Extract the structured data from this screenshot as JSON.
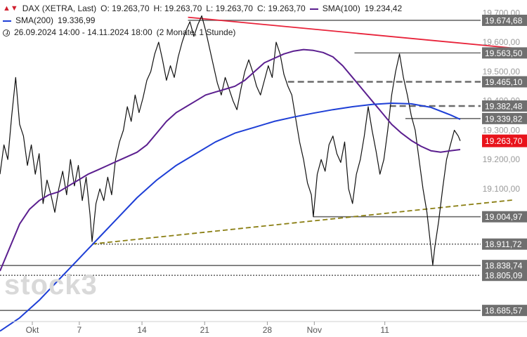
{
  "legend": {
    "symbol": "DAX (XETRA, Last)",
    "open": "O: 19.263,70",
    "high": "H: 19.263,70",
    "low": "L: 19.263,70",
    "close": "C: 19.263,70",
    "sma100_label": "SMA(100)",
    "sma100_value": "19.234,42",
    "sma200_label": "SMA(200)",
    "sma200_value": "19.336,99",
    "range": "26.09.2024 14:00 - 14.11.2024 18:00",
    "span": "(2 Monate, 1 Stunde)",
    "symbol_icon": "chart-candles-icon",
    "time_icon": "clock-icon"
  },
  "watermark": "stock3",
  "colors": {
    "price": "#111111",
    "sma100": "#5b1f8f",
    "sma200": "#1e3fd6",
    "trend_red": "#e8233a",
    "trend_olive": "#8a7e12",
    "level": "#6b6b6b",
    "current": "#e8131b"
  },
  "chart_data": {
    "type": "line",
    "ylim": [
      18650,
      19720
    ],
    "x_ticks": [
      {
        "label": "Okt",
        "t": 16.5
      },
      {
        "label": "7",
        "t": 40.5
      },
      {
        "label": "14",
        "t": 72.5
      },
      {
        "label": "21",
        "t": 104.5
      },
      {
        "label": "28",
        "t": 136.5
      },
      {
        "label": "Nov",
        "t": 160.5
      },
      {
        "label": "11",
        "t": 196.5
      }
    ],
    "y_ticks": [
      {
        "label": "19.700,00",
        "v": 19700
      },
      {
        "label": "19.600,00",
        "v": 19600
      },
      {
        "label": "19.500,00",
        "v": 19500
      },
      {
        "label": "19.400,00",
        "v": 19400
      },
      {
        "label": "19.300,00",
        "v": 19300
      },
      {
        "label": "19.200,00",
        "v": 19200
      },
      {
        "label": "19.100,00",
        "v": 19100
      }
    ],
    "levels": [
      {
        "label": "19.674,68",
        "v": 19674.68,
        "style": "solid",
        "from": 96
      },
      {
        "label": "19.563,50",
        "v": 19563.5,
        "style": "solid",
        "from": 181
      },
      {
        "label": "19.465,10",
        "v": 19465.1,
        "style": "dashed",
        "from": 147
      },
      {
        "label": "19.382,48",
        "v": 19382.48,
        "style": "dashed",
        "from": 199
      },
      {
        "label": "19.339,82",
        "v": 19339.82,
        "style": "solid",
        "from": 207
      },
      {
        "label": "19.004,97",
        "v": 19004.97,
        "style": "solid",
        "from": 160
      },
      {
        "label": "18.911,72",
        "v": 18911.72,
        "style": "dotted",
        "from": 47
      },
      {
        "label": "18.838,74",
        "v": 18838.74,
        "style": "solid",
        "from": 0
      },
      {
        "label": "18.805,09",
        "v": 18805.09,
        "style": "dotted",
        "from": 0
      },
      {
        "label": "18.685,57",
        "v": 18685.57,
        "style": "solid",
        "from": 0
      }
    ],
    "current": {
      "label": "19.263,70",
      "v": 19263.7
    },
    "trendlines": [
      {
        "name": "red-resistance",
        "t1": 96,
        "v1": 19685,
        "t2": 262,
        "v2": 19580,
        "color": "trend_red",
        "style": "solid"
      },
      {
        "name": "olive-support",
        "t1": 47,
        "v1": 18912,
        "t2": 262,
        "v2": 19062,
        "color": "trend_olive",
        "style": "dashed"
      }
    ],
    "series": [
      {
        "name": "DAX (XETRA, Last)",
        "color": "price",
        "points": [
          [
            0,
            19150
          ],
          [
            2,
            19250
          ],
          [
            4,
            19200
          ],
          [
            6,
            19350
          ],
          [
            8,
            19480
          ],
          [
            10,
            19320
          ],
          [
            12,
            19280
          ],
          [
            14,
            19180
          ],
          [
            16,
            19250
          ],
          [
            18,
            19150
          ],
          [
            20,
            19220
          ],
          [
            22,
            19050
          ],
          [
            24,
            19130
          ],
          [
            26,
            19080
          ],
          [
            28,
            19020
          ],
          [
            30,
            19100
          ],
          [
            32,
            19160
          ],
          [
            34,
            19080
          ],
          [
            36,
            19200
          ],
          [
            38,
            19110
          ],
          [
            40,
            19180
          ],
          [
            42,
            19060
          ],
          [
            44,
            19140
          ],
          [
            46,
            19010
          ],
          [
            47,
            18920
          ],
          [
            49,
            19050
          ],
          [
            51,
            19100
          ],
          [
            53,
            19060
          ],
          [
            55,
            19140
          ],
          [
            57,
            19080
          ],
          [
            59,
            19200
          ],
          [
            61,
            19260
          ],
          [
            63,
            19300
          ],
          [
            65,
            19380
          ],
          [
            67,
            19330
          ],
          [
            69,
            19420
          ],
          [
            71,
            19360
          ],
          [
            73,
            19410
          ],
          [
            75,
            19470
          ],
          [
            77,
            19500
          ],
          [
            79,
            19560
          ],
          [
            81,
            19600
          ],
          [
            83,
            19540
          ],
          [
            85,
            19470
          ],
          [
            87,
            19520
          ],
          [
            89,
            19480
          ],
          [
            91,
            19550
          ],
          [
            93,
            19600
          ],
          [
            95,
            19640
          ],
          [
            97,
            19670
          ],
          [
            99,
            19620
          ],
          [
            101,
            19660
          ],
          [
            103,
            19690
          ],
          [
            105,
            19640
          ],
          [
            107,
            19580
          ],
          [
            109,
            19520
          ],
          [
            111,
            19460
          ],
          [
            113,
            19420
          ],
          [
            115,
            19480
          ],
          [
            117,
            19440
          ],
          [
            119,
            19400
          ],
          [
            121,
            19370
          ],
          [
            123,
            19440
          ],
          [
            125,
            19500
          ],
          [
            127,
            19540
          ],
          [
            129,
            19500
          ],
          [
            131,
            19450
          ],
          [
            133,
            19420
          ],
          [
            135,
            19470
          ],
          [
            137,
            19520
          ],
          [
            139,
            19480
          ],
          [
            141,
            19600
          ],
          [
            143,
            19560
          ],
          [
            145,
            19490
          ],
          [
            147,
            19450
          ],
          [
            149,
            19420
          ],
          [
            151,
            19340
          ],
          [
            153,
            19260
          ],
          [
            155,
            19200
          ],
          [
            157,
            19120
          ],
          [
            159,
            19080
          ],
          [
            160,
            19005
          ],
          [
            162,
            19150
          ],
          [
            164,
            19200
          ],
          [
            166,
            19160
          ],
          [
            168,
            19250
          ],
          [
            170,
            19280
          ],
          [
            172,
            19220
          ],
          [
            174,
            19190
          ],
          [
            176,
            19260
          ],
          [
            178,
            19100
          ],
          [
            180,
            19050
          ],
          [
            182,
            19150
          ],
          [
            184,
            19200
          ],
          [
            186,
            19280
          ],
          [
            188,
            19380
          ],
          [
            190,
            19300
          ],
          [
            192,
            19230
          ],
          [
            194,
            19150
          ],
          [
            196,
            19200
          ],
          [
            198,
            19300
          ],
          [
            200,
            19420
          ],
          [
            202,
            19500
          ],
          [
            204,
            19560
          ],
          [
            206,
            19480
          ],
          [
            208,
            19420
          ],
          [
            210,
            19350
          ],
          [
            212,
            19300
          ],
          [
            214,
            19200
          ],
          [
            216,
            19100
          ],
          [
            218,
            19020
          ],
          [
            220,
            18900
          ],
          [
            221,
            18840
          ],
          [
            222,
            18900
          ],
          [
            224,
            18990
          ],
          [
            226,
            19100
          ],
          [
            228,
            19200
          ],
          [
            230,
            19250
          ],
          [
            232,
            19300
          ],
          [
            234,
            19280
          ],
          [
            235,
            19263.7
          ]
        ]
      },
      {
        "name": "SMA(100)",
        "color": "sma100",
        "points": [
          [
            0,
            18820
          ],
          [
            5,
            18900
          ],
          [
            10,
            18980
          ],
          [
            15,
            19030
          ],
          [
            20,
            19060
          ],
          [
            25,
            19080
          ],
          [
            30,
            19090
          ],
          [
            35,
            19110
          ],
          [
            40,
            19130
          ],
          [
            45,
            19150
          ],
          [
            50,
            19165
          ],
          [
            55,
            19180
          ],
          [
            60,
            19195
          ],
          [
            65,
            19210
          ],
          [
            70,
            19225
          ],
          [
            75,
            19250
          ],
          [
            80,
            19290
          ],
          [
            85,
            19330
          ],
          [
            90,
            19360
          ],
          [
            95,
            19380
          ],
          [
            100,
            19400
          ],
          [
            105,
            19420
          ],
          [
            110,
            19430
          ],
          [
            115,
            19440
          ],
          [
            120,
            19450
          ],
          [
            125,
            19470
          ],
          [
            130,
            19500
          ],
          [
            135,
            19530
          ],
          [
            140,
            19545
          ],
          [
            145,
            19560
          ],
          [
            150,
            19570
          ],
          [
            155,
            19575
          ],
          [
            160,
            19572
          ],
          [
            165,
            19565
          ],
          [
            170,
            19550
          ],
          [
            175,
            19520
          ],
          [
            180,
            19480
          ],
          [
            185,
            19440
          ],
          [
            190,
            19400
          ],
          [
            195,
            19360
          ],
          [
            200,
            19320
          ],
          [
            205,
            19290
          ],
          [
            210,
            19265
          ],
          [
            215,
            19245
          ],
          [
            220,
            19230
          ],
          [
            225,
            19225
          ],
          [
            230,
            19230
          ],
          [
            235,
            19234
          ]
        ]
      },
      {
        "name": "SMA(200)",
        "color": "sma200",
        "points": [
          [
            0,
            18615
          ],
          [
            10,
            18660
          ],
          [
            20,
            18720
          ],
          [
            30,
            18790
          ],
          [
            40,
            18860
          ],
          [
            50,
            18930
          ],
          [
            60,
            19000
          ],
          [
            70,
            19070
          ],
          [
            80,
            19130
          ],
          [
            90,
            19180
          ],
          [
            100,
            19220
          ],
          [
            110,
            19260
          ],
          [
            120,
            19290
          ],
          [
            130,
            19310
          ],
          [
            140,
            19330
          ],
          [
            150,
            19345
          ],
          [
            160,
            19358
          ],
          [
            170,
            19370
          ],
          [
            180,
            19380
          ],
          [
            190,
            19388
          ],
          [
            200,
            19392
          ],
          [
            210,
            19390
          ],
          [
            220,
            19378
          ],
          [
            230,
            19352
          ],
          [
            235,
            19337
          ]
        ]
      }
    ]
  }
}
